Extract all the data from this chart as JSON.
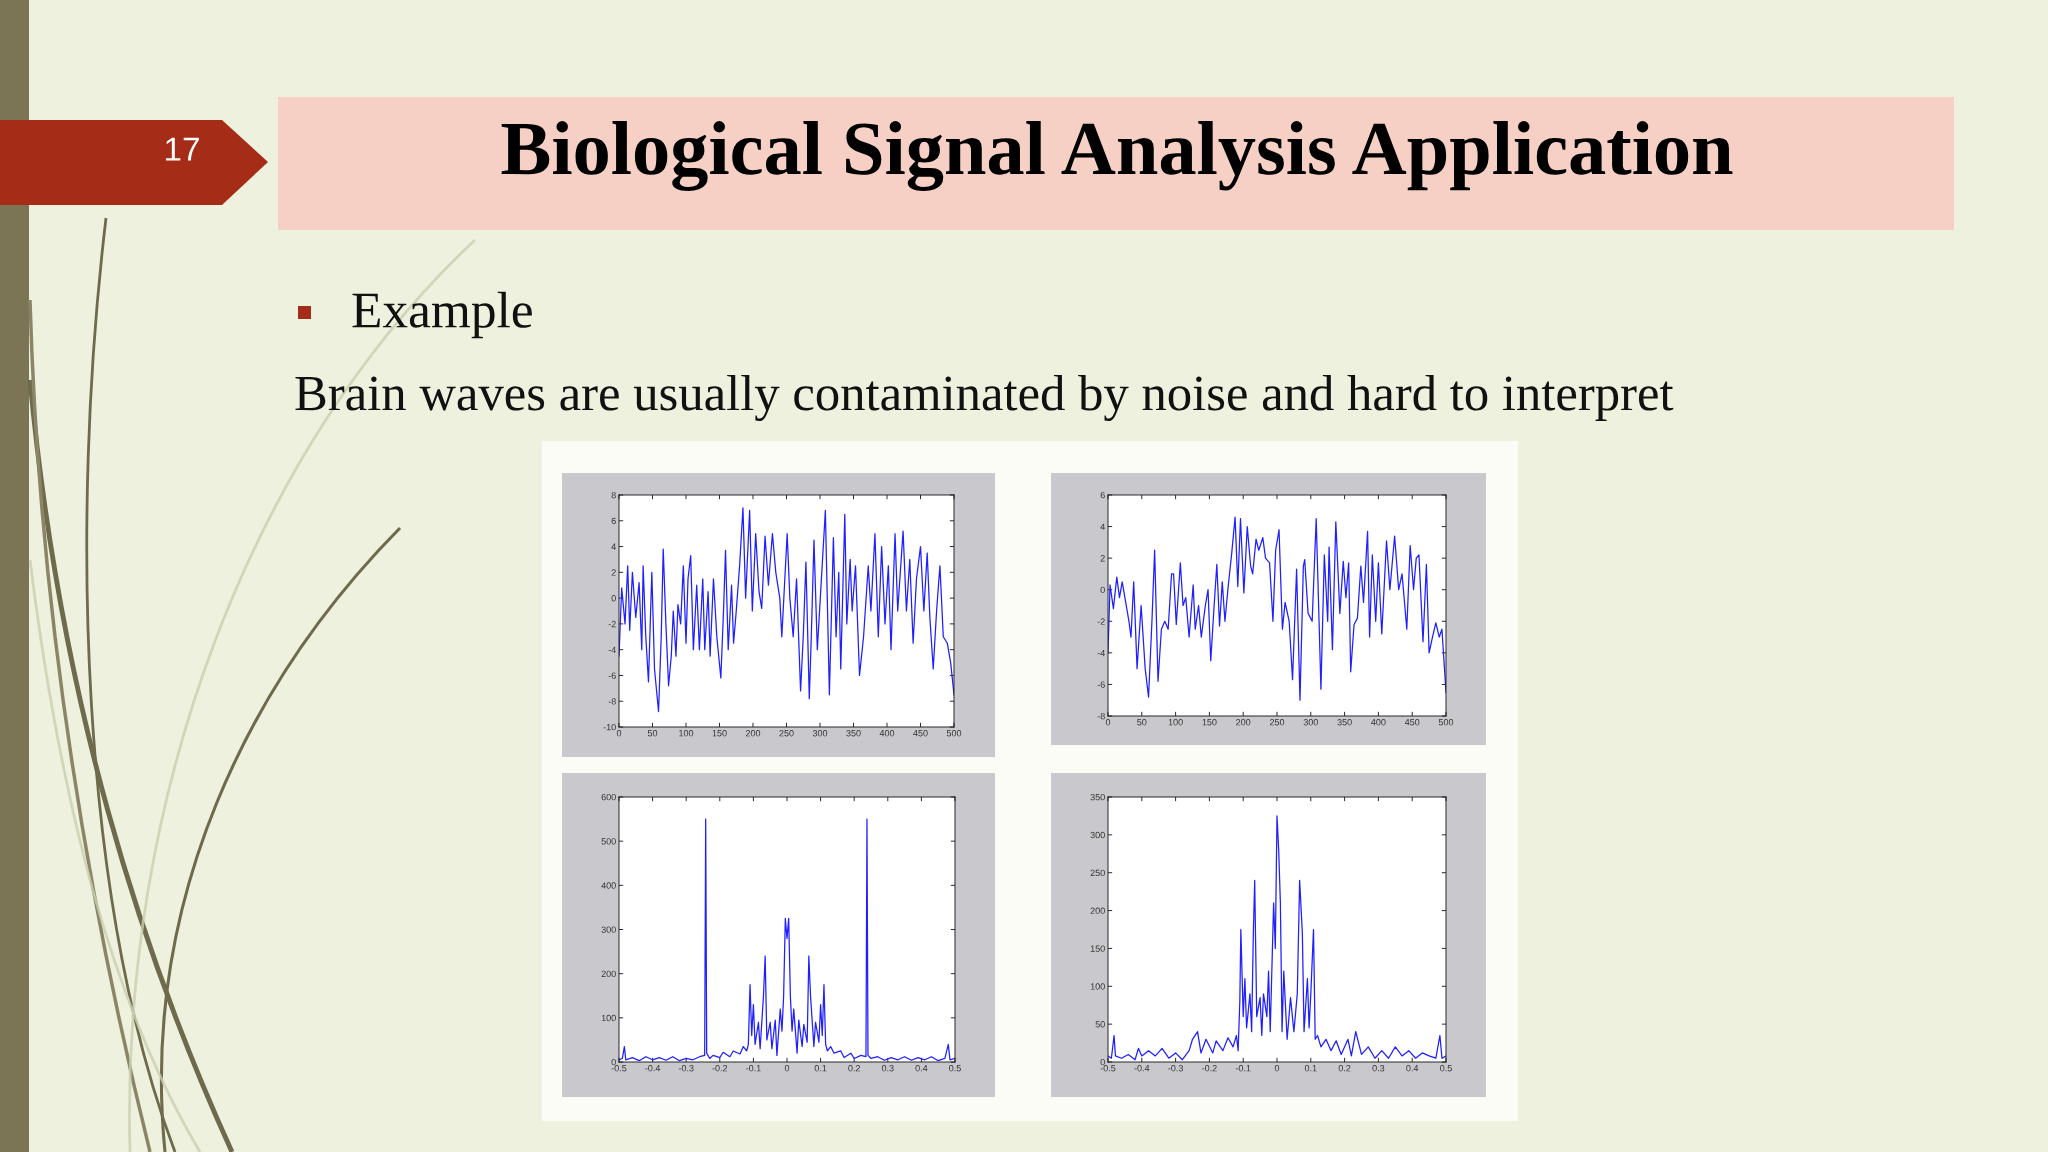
{
  "chart_data": [
    {
      "type": "other",
      "title": "Biological Signal Analysis Application",
      "annotations": [
        "17",
        "Example",
        "Brain waves are usually contaminated by noise and hard to interpret"
      ]
    },
    {
      "type": "line",
      "x": [
        0,
        4,
        9,
        13,
        16,
        20,
        25,
        30,
        34,
        36,
        40,
        44,
        49,
        53,
        59,
        63,
        66,
        70,
        74,
        78,
        81,
        85,
        88,
        92,
        96,
        100,
        103,
        107,
        111,
        116,
        120,
        125,
        128,
        133,
        136,
        141,
        146,
        152,
        156,
        159,
        163,
        168,
        171,
        175,
        180,
        185,
        189,
        195,
        199,
        204,
        209,
        213,
        218,
        223,
        229,
        234,
        240,
        243,
        251,
        255,
        260,
        265,
        271,
        275,
        279,
        284,
        287,
        291,
        296,
        301,
        308,
        314,
        320,
        324,
        328,
        331,
        337,
        340,
        345,
        348,
        353,
        359,
        365,
        372,
        376,
        382,
        387,
        392,
        397,
        402,
        406,
        412,
        416,
        424,
        429,
        434,
        439,
        444,
        450,
        455,
        460,
        464,
        469,
        474,
        479,
        484,
        490,
        495,
        500
      ],
      "series": [
        {
          "color": "#1f1fff",
          "values": [
            -4.5,
            0.8,
            -2,
            2.5,
            -2.5,
            2,
            -1.5,
            1.2,
            -4,
            2.5,
            -3,
            -6.5,
            2,
            -5.5,
            -8.8,
            -3,
            3.8,
            -2,
            -6.8,
            -4.5,
            -1,
            -4.5,
            -0.5,
            -2,
            2.5,
            -3.5,
            1.5,
            3.3,
            -4,
            1,
            -4,
            1.5,
            -4,
            0.5,
            -4.5,
            1.5,
            -3,
            -6.2,
            -1,
            3.7,
            -4,
            1,
            -3.5,
            -1,
            2.5,
            7,
            0,
            6.8,
            -1,
            5,
            0.5,
            -0.8,
            4.8,
            1,
            5,
            2,
            0,
            -3,
            5,
            0,
            -3,
            1.5,
            -7.2,
            -3,
            2.8,
            -7.8,
            -3,
            4.5,
            -4,
            0.5,
            6.8,
            -7.5,
            4.7,
            -3,
            2,
            -5.5,
            6.5,
            -2,
            3,
            -1,
            2.5,
            -6,
            -3,
            2.5,
            -1,
            5,
            -3,
            4,
            -2,
            2.5,
            -4,
            5,
            -1,
            5.2,
            -1,
            3,
            -3.5,
            1.5,
            4,
            -1,
            3.5,
            -1.5,
            -5.5,
            -1,
            2.5,
            -3,
            -3.5,
            -5,
            -7.5
          ]
        }
      ],
      "xlim": [
        0,
        500
      ],
      "ylim": [
        -10,
        8
      ],
      "xticks": [
        0,
        50,
        100,
        150,
        200,
        250,
        300,
        350,
        400,
        450,
        500
      ],
      "yticks": [
        -10,
        -8,
        -6,
        -4,
        -2,
        0,
        2,
        4,
        6,
        8
      ]
    },
    {
      "type": "line",
      "x": [
        0,
        3,
        8,
        13,
        17,
        21,
        25,
        31,
        34,
        38,
        43,
        49,
        55,
        60,
        65,
        69,
        74,
        79,
        84,
        89,
        94,
        97,
        101,
        107,
        111,
        115,
        120,
        126,
        129,
        134,
        138,
        144,
        148,
        152,
        157,
        161,
        165,
        169,
        173,
        178,
        183,
        188,
        192,
        196,
        201,
        206,
        211,
        214,
        219,
        223,
        229,
        233,
        239,
        244,
        248,
        253,
        258,
        262,
        268,
        273,
        279,
        284,
        289,
        291,
        296,
        302,
        308,
        315,
        320,
        325,
        327,
        332,
        337,
        343,
        348,
        352,
        356,
        359,
        364,
        369,
        374,
        378,
        384,
        387,
        391,
        396,
        400,
        405,
        412,
        417,
        424,
        430,
        435,
        442,
        447,
        452,
        456,
        460,
        466,
        471,
        475,
        480,
        485,
        490,
        494,
        500
      ],
      "series": [
        {
          "color": "#1f1fff",
          "values": [
            -4,
            0.3,
            -1.2,
            0.8,
            -0.5,
            0.5,
            -0.5,
            -2,
            -3,
            0.5,
            -5,
            -1,
            -5,
            -6.8,
            -2,
            2.5,
            -5.8,
            -2.5,
            -2,
            -2.5,
            1,
            1,
            -2.2,
            1.7,
            -1,
            -0.5,
            -3,
            0.3,
            -2.5,
            -1,
            -3,
            -1,
            0,
            -4.5,
            -1,
            1.6,
            -2.3,
            0.5,
            -2,
            0.3,
            2.3,
            4.6,
            0.2,
            4.5,
            -0.2,
            4,
            1.5,
            1,
            3.2,
            2.5,
            3.3,
            2,
            1.7,
            -2,
            2.5,
            3.8,
            -2.5,
            -0.8,
            -2,
            -5.7,
            1.3,
            -7,
            1.5,
            1.9,
            -1.5,
            -2,
            4.5,
            -6.3,
            2.2,
            -2,
            2.7,
            -3.8,
            4.3,
            -1.5,
            1.8,
            -0.5,
            1.7,
            -5.2,
            -2.2,
            -1.8,
            1.5,
            -0.8,
            3.7,
            -3,
            2.2,
            -2,
            1.7,
            -2.8,
            3.1,
            0,
            3.4,
            0,
            1,
            -2.5,
            2.8,
            0,
            2,
            2.2,
            -3.3,
            1.6,
            -4,
            -3,
            -2.1,
            -3,
            -2.5,
            -6.5
          ]
        }
      ],
      "xlim": [
        0,
        500
      ],
      "ylim": [
        -8,
        6
      ],
      "xticks": [
        0,
        50,
        100,
        150,
        200,
        250,
        300,
        350,
        400,
        450,
        500
      ],
      "yticks": [
        -8,
        -6,
        -4,
        -2,
        0,
        2,
        4,
        6
      ]
    },
    {
      "type": "line",
      "x": [
        -0.5,
        -0.49,
        -0.484,
        -0.48,
        -0.46,
        -0.44,
        -0.42,
        -0.4,
        -0.38,
        -0.36,
        -0.34,
        -0.32,
        -0.3,
        -0.28,
        -0.26,
        -0.245,
        -0.242,
        -0.239,
        -0.23,
        -0.22,
        -0.2,
        -0.19,
        -0.17,
        -0.16,
        -0.14,
        -0.13,
        -0.12,
        -0.115,
        -0.11,
        -0.105,
        -0.1,
        -0.095,
        -0.085,
        -0.08,
        -0.07,
        -0.065,
        -0.06,
        -0.05,
        -0.045,
        -0.035,
        -0.03,
        -0.02,
        -0.015,
        -0.01,
        -0.005,
        0,
        0.005,
        0.01,
        0.015,
        0.02,
        0.03,
        0.035,
        0.045,
        0.05,
        0.06,
        0.065,
        0.07,
        0.08,
        0.085,
        0.095,
        0.1,
        0.105,
        0.11,
        0.115,
        0.12,
        0.13,
        0.14,
        0.16,
        0.17,
        0.19,
        0.2,
        0.22,
        0.235,
        0.238,
        0.241,
        0.25,
        0.27,
        0.29,
        0.31,
        0.33,
        0.35,
        0.37,
        0.39,
        0.41,
        0.43,
        0.45,
        0.47,
        0.48,
        0.485,
        0.5
      ],
      "series": [
        {
          "color": "#1f1fff",
          "values": [
            5,
            8,
            35,
            5,
            10,
            3,
            12,
            5,
            10,
            4,
            12,
            3,
            8,
            5,
            12,
            15,
            550,
            20,
            8,
            15,
            10,
            22,
            12,
            25,
            18,
            35,
            25,
            40,
            175,
            60,
            130,
            40,
            90,
            30,
            150,
            240,
            50,
            90,
            30,
            95,
            15,
            120,
            70,
            150,
            325,
            280,
            325,
            150,
            70,
            120,
            20,
            95,
            35,
            85,
            45,
            240,
            150,
            35,
            90,
            45,
            130,
            60,
            175,
            40,
            25,
            35,
            20,
            25,
            10,
            20,
            8,
            15,
            12,
            550,
            15,
            8,
            12,
            4,
            10,
            5,
            12,
            4,
            10,
            5,
            12,
            3,
            8,
            40,
            5,
            8
          ]
        }
      ],
      "xlim": [
        -0.5,
        0.5
      ],
      "ylim": [
        0,
        600
      ],
      "xticks": [
        -0.5,
        -0.4,
        -0.3,
        -0.2,
        -0.1,
        0,
        0.1,
        0.2,
        0.3,
        0.4,
        0.5
      ],
      "yticks": [
        0,
        100,
        200,
        300,
        400,
        500,
        600
      ]
    },
    {
      "type": "line",
      "x": [
        -0.5,
        -0.49,
        -0.482,
        -0.478,
        -0.46,
        -0.44,
        -0.42,
        -0.41,
        -0.4,
        -0.38,
        -0.36,
        -0.34,
        -0.32,
        -0.3,
        -0.28,
        -0.26,
        -0.25,
        -0.235,
        -0.225,
        -0.21,
        -0.19,
        -0.18,
        -0.16,
        -0.145,
        -0.13,
        -0.12,
        -0.115,
        -0.11,
        -0.107,
        -0.1,
        -0.095,
        -0.09,
        -0.08,
        -0.075,
        -0.07,
        -0.066,
        -0.06,
        -0.05,
        -0.045,
        -0.04,
        -0.03,
        -0.025,
        -0.02,
        -0.01,
        -0.005,
        0,
        0.005,
        0.01,
        0.015,
        0.02,
        0.03,
        0.04,
        0.05,
        0.06,
        0.067,
        0.075,
        0.08,
        0.09,
        0.095,
        0.1,
        0.108,
        0.113,
        0.12,
        0.13,
        0.145,
        0.16,
        0.175,
        0.19,
        0.21,
        0.22,
        0.233,
        0.25,
        0.27,
        0.29,
        0.31,
        0.33,
        0.35,
        0.37,
        0.39,
        0.41,
        0.43,
        0.45,
        0.47,
        0.482,
        0.488,
        0.5
      ],
      "series": [
        {
          "color": "#1f1fff",
          "values": [
            8,
            5,
            35,
            8,
            5,
            10,
            3,
            18,
            8,
            15,
            8,
            18,
            5,
            12,
            3,
            15,
            30,
            40,
            12,
            30,
            12,
            28,
            15,
            32,
            20,
            35,
            15,
            80,
            175,
            60,
            110,
            45,
            90,
            40,
            170,
            240,
            60,
            85,
            35,
            90,
            60,
            120,
            40,
            210,
            150,
            325,
            280,
            210,
            40,
            120,
            30,
            85,
            40,
            90,
            240,
            170,
            40,
            110,
            45,
            90,
            175,
            30,
            35,
            20,
            30,
            15,
            28,
            10,
            30,
            8,
            40,
            10,
            20,
            5,
            15,
            5,
            20,
            8,
            15,
            5,
            12,
            8,
            5,
            35,
            5,
            8
          ]
        }
      ],
      "xlim": [
        -0.5,
        0.5
      ],
      "ylim": [
        0,
        350
      ],
      "xticks": [
        -0.5,
        -0.4,
        -0.3,
        -0.2,
        -0.1,
        0,
        0.1,
        0.2,
        0.3,
        0.4,
        0.5
      ],
      "yticks": [
        0,
        50,
        100,
        150,
        200,
        250,
        300,
        350
      ]
    }
  ]
}
